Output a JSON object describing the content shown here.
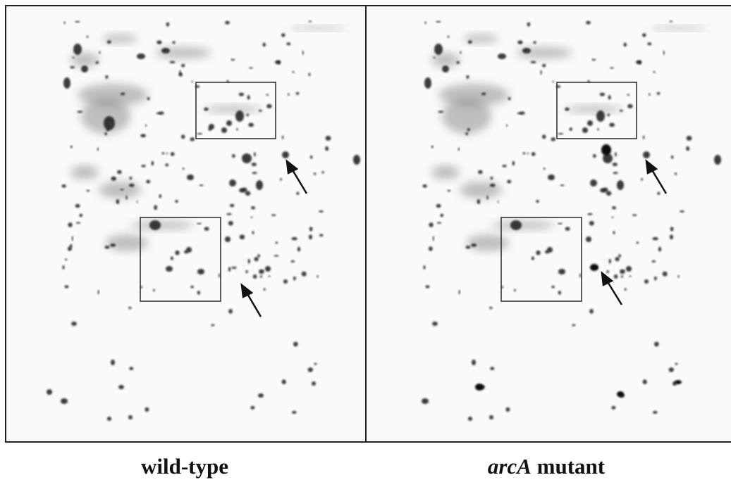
{
  "panels": [
    {
      "label": "wild-type"
    },
    {
      "label_parts": [
        "arcA",
        "mutant"
      ]
    }
  ]
}
